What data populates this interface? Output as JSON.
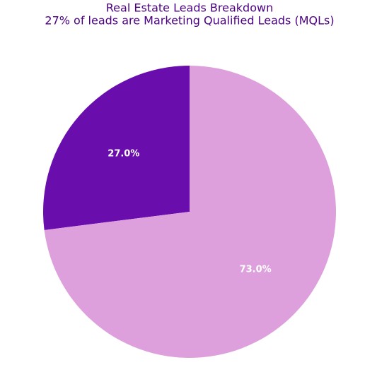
{
  "chart_data": {
    "type": "pie",
    "title": "Real Estate Leads Breakdown",
    "subtitle": "27% of leads are Marketing Qualified Leads (MQLs)",
    "values": [
      27.0,
      73.0
    ],
    "value_labels": [
      "27.0%",
      "73.0%"
    ],
    "colors": [
      "#6a0dad",
      "#dda0dd"
    ]
  }
}
